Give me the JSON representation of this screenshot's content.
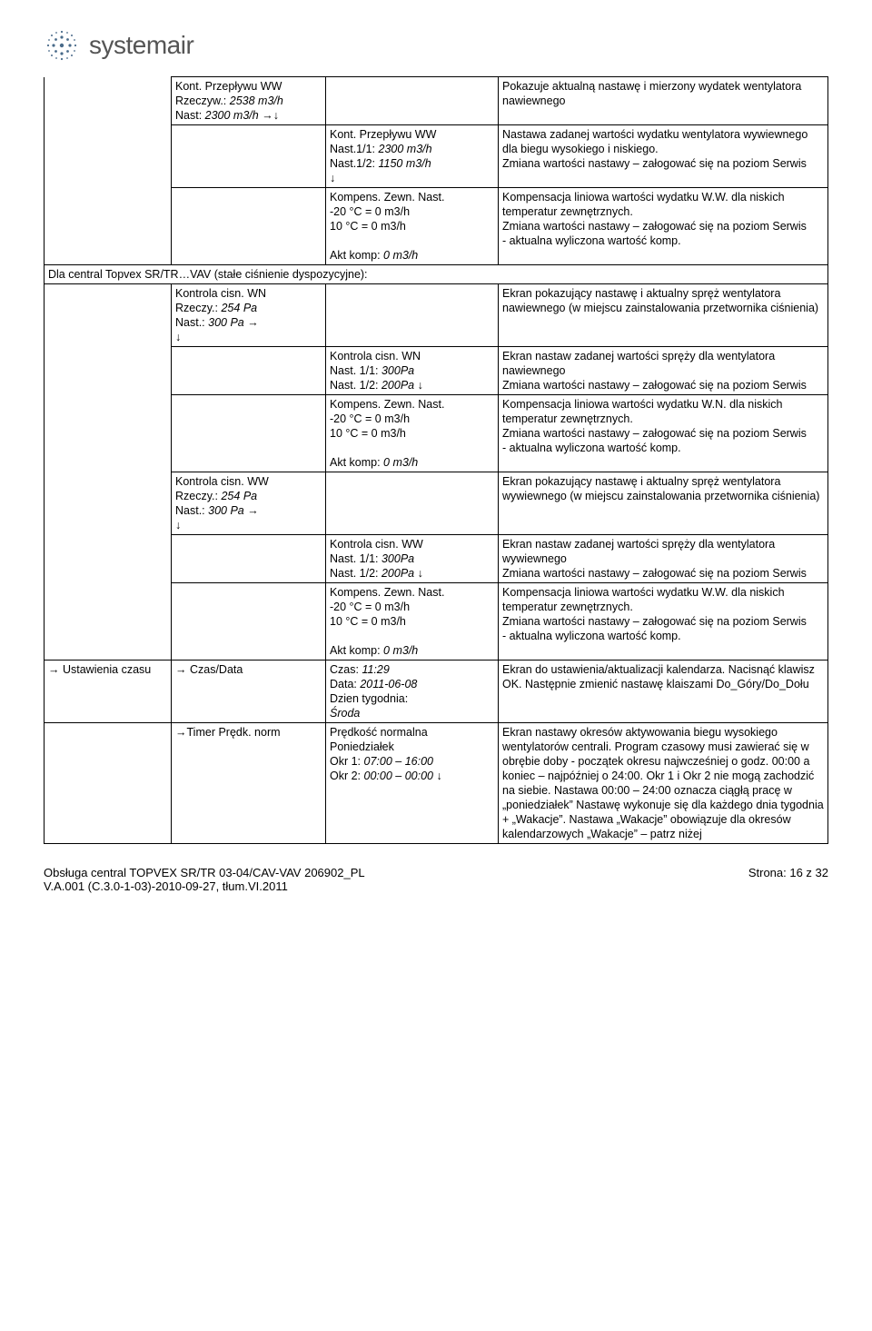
{
  "logo_text": "systemair",
  "section_header": "Dla central Topvex SR/TR…VAV (stałe ciśnienie dyspozycyjne):",
  "rows": [
    {
      "c1_open_top": true,
      "c2": "Kont. Przepływu WW\nRzeczyw.: 2538 m3/h\nNast: 2300 m3/h →↓",
      "c4": "Pokazuje aktualną nastawę i mierzony wydatek wentylatora nawiewnego"
    },
    {
      "c1_open": true,
      "c3": "Kont. Przepływu WW\nNast.1/1: 2300 m3/h\nNast.1/2: 1150 m3/h\n                          ↓",
      "c4": "Nastawa zadanej wartości wydatku wentylatora wywiewnego dla biegu wysokiego i niskiego.\nZmiana wartości nastawy – załogować się na poziom Serwis"
    },
    {
      "c1_open": true,
      "c3": "Kompens. Zewn. Nast.\n-20 °C  = 0   m3/h\n10   °C  = 0   m3/h\n\nAkt komp:   0 m3/h",
      "c4": "Kompensacja liniowa wartości wydatku W.W. dla niskich temperatur zewnętrznych.\nZmiana wartości nastawy – załogować się na poziom Serwis\n- aktualna wyliczona wartość komp."
    },
    {
      "c1_open": true,
      "c2": "Kontrola cisn. WN\nRzeczy.: 254 Pa\nNast.:  300 Pa  →\n                          ↓",
      "c4": "Ekran pokazujący nastawę i aktualny spręż wentylatora nawiewnego (w miejscu zainstalowania przetwornika ciśnienia)"
    },
    {
      "c1_open": true,
      "c3": "Kontrola cisn. WN\nNast. 1/1:  300Pa\nNast. 1/2:  200Pa       ↓",
      "c4": "Ekran nastaw zadanej wartości spręży dla wentylatora nawiewnego\nZmiana wartości nastawy – załogować się na poziom Serwis"
    },
    {
      "c1_open": true,
      "c3": "Kompens. Zewn. Nast.\n-20 °C  = 0   m3/h\n10   °C  = 0   m3/h\n\nAkt komp:   0 m3/h",
      "c4": "Kompensacja liniowa wartości wydatku W.N. dla niskich temperatur zewnętrznych.\nZmiana wartości nastawy – załogować się na poziom Serwis\n- aktualna wyliczona wartość komp."
    },
    {
      "c1_open": true,
      "c2": "Kontrola cisn. WW\nRzeczy.: 254 Pa\nNast.:  300 Pa  →\n                          ↓",
      "c4": "Ekran pokazujący nastawę i aktualny spręż wentylatora wywiewnego (w miejscu zainstalowania przetwornika ciśnienia)"
    },
    {
      "c1_open": true,
      "c3": "Kontrola cisn. WW\nNast. 1/1:  300Pa\nNast. 1/2:  200Pa       ↓",
      "c4": "Ekran nastaw zadanej wartości spręży dla wentylatora wywiewnego\nZmiana wartości nastawy – załogować się na poziom Serwis"
    },
    {
      "c1_open": true,
      "c3": "Kompens. Zewn. Nast.\n-20 °C  = 0   m3/h\n10   °C  = 0   m3/h\n\nAkt komp:   0 m3/h",
      "c4": "Kompensacja liniowa wartości wydatku W.W. dla niskich temperatur zewnętrznych.\nZmiana wartości nastawy – załogować się na poziom Serwis\n- aktualna wyliczona wartość komp."
    },
    {
      "c1": "→ Ustawienia czasu",
      "c2": "→ Czas/Data",
      "c3": "Czas: 11:29\nData: 2011-06-08\nDzien tygodnia:\nŚroda",
      "c3_italic_lines": [
        0,
        1,
        3
      ],
      "c4": "Ekran do ustawienia/aktualizacji kalendarza. Nacisnąć klawisz OK. Następnie zmienić nastawę klaiszami Do_Góry/Do_Dołu"
    },
    {
      "c1_open": true,
      "c2": "→Timer Prędk.  norm",
      "c3": "Prędkość normalna\nPoniedziałek\nOkr 1: 07:00 – 16:00\nOkr 2: 00:00 – 00:00   ↓",
      "c3_italic_lines": [
        2,
        3
      ],
      "c4": "Ekran nastawy okresów aktywowania biegu wysokiego wentylatorów centrali. Program czasowy musi zawierać się w obrębie doby - początek okresu najwcześniej o godz. 00:00 a koniec – najpóźniej o 24:00. Okr 1 i Okr 2 nie mogą zachodzić na siebie. Nastawa 00:00 – 24:00 oznacza ciągłą pracę w „poniedziałek” Nastawę wykonuje się dla każdego dnia tygodnia + „Wakacje”. Nastawa „Wakacje” obowiązuje dla okresów kalendarzowych „Wakacje” – patrz niżej"
    }
  ],
  "footer_left": "Obsługa central TOPVEX SR/TR 03-04/CAV-VAV  206902_PL\nV.A.001 (C.3.0-1-03)-2010-09-27, tłum.VI.2011",
  "footer_right": "Strona:  16  z  32"
}
